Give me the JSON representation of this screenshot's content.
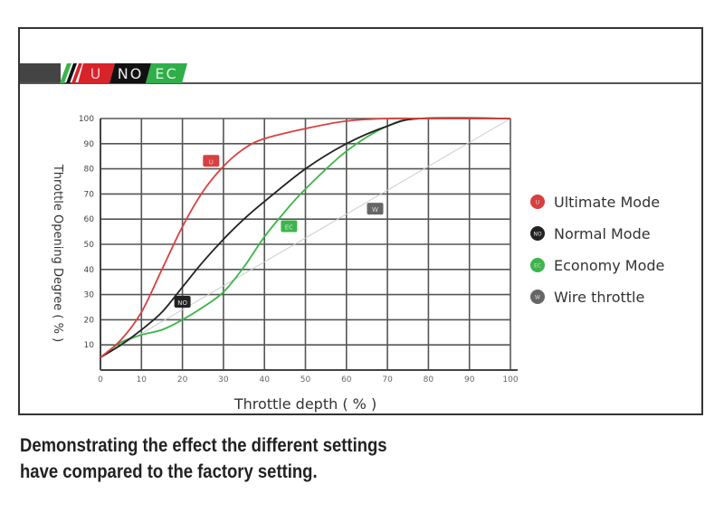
{
  "header_logo": {
    "segments": [
      "U",
      "NO",
      "EC"
    ],
    "colors": [
      "#d8232a",
      "#111111",
      "#2fae4a"
    ]
  },
  "chart_data": {
    "type": "line",
    "title": "",
    "xlabel": "Throttle depth ( % )",
    "ylabel": "Throttle Opening Degree ( % )",
    "xlim": [
      0,
      100
    ],
    "ylim": [
      0,
      100
    ],
    "xticks": [
      0,
      10,
      20,
      30,
      40,
      50,
      60,
      70,
      80,
      90,
      100
    ],
    "yticks": [
      10,
      20,
      30,
      40,
      50,
      60,
      70,
      80,
      90,
      100
    ],
    "grid": true,
    "legend_position": "right",
    "series": [
      {
        "name": "Ultimate Mode",
        "badge": "U",
        "color": "#d8403f",
        "label_at": [
          27,
          83
        ],
        "x": [
          0,
          5,
          10,
          15,
          20,
          25,
          30,
          35,
          40,
          50,
          60,
          70,
          80,
          100
        ],
        "y": [
          5,
          12,
          23,
          40,
          57,
          71,
          81,
          88,
          92,
          96,
          99,
          100,
          100,
          100
        ]
      },
      {
        "name": "Normal Mode",
        "badge": "NO",
        "color": "#222222",
        "label_at": [
          20,
          27
        ],
        "x": [
          0,
          5,
          10,
          15,
          20,
          25,
          30,
          35,
          40,
          50,
          60,
          70,
          78,
          100
        ],
        "y": [
          5,
          10,
          16,
          23,
          33,
          43,
          52,
          60,
          67,
          80,
          90,
          97,
          100,
          100
        ]
      },
      {
        "name": "Economy Mode",
        "badge": "EC",
        "color": "#3cb54a",
        "label_at": [
          46,
          57
        ],
        "x": [
          0,
          5,
          10,
          15,
          20,
          25,
          30,
          35,
          40,
          45,
          50,
          60,
          70,
          78,
          100
        ],
        "y": [
          5,
          11,
          14,
          16,
          20,
          25,
          31,
          41,
          53,
          63,
          72,
          87,
          97,
          100,
          100
        ]
      },
      {
        "name": "Wire throttle",
        "badge": "W",
        "color": "#666666",
        "line_color": "#cccccc",
        "label_at": [
          67,
          64
        ],
        "x": [
          0,
          100
        ],
        "y": [
          5,
          100
        ]
      }
    ]
  },
  "caption": {
    "line1": "Demonstrating the effect the different settings",
    "line2": "have compared to the factory setting."
  }
}
